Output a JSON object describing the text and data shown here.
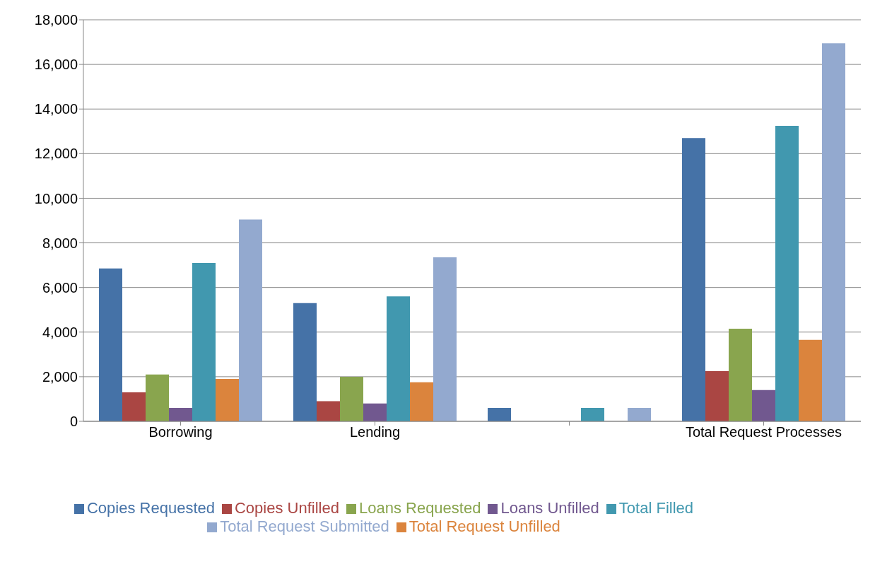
{
  "chart_data": {
    "type": "bar",
    "categories": [
      "Borrowing",
      "Lending",
      null,
      "Total Request Processes"
    ],
    "series": [
      {
        "name": "Copies Requested",
        "color": "#4572a7",
        "values": [
          6850,
          5300,
          600,
          12700
        ]
      },
      {
        "name": "Copies Unfilled",
        "color": "#aa4643",
        "values": [
          1300,
          900,
          0,
          2250
        ]
      },
      {
        "name": "Loans Requested",
        "color": "#89a54e",
        "values": [
          2100,
          2000,
          0,
          4150
        ]
      },
      {
        "name": "Loans Unfilled",
        "color": "#71588f",
        "values": [
          600,
          800,
          0,
          1400
        ]
      },
      {
        "name": "Total Filled",
        "color": "#4198af",
        "values": [
          7100,
          5600,
          600,
          13250
        ]
      },
      {
        "name": "Total Request Unfilled",
        "color": "#db843d",
        "values": [
          1900,
          1750,
          0,
          3650
        ]
      },
      {
        "name": "Total Request Submitted",
        "color": "#93a9cf",
        "values": [
          9050,
          7350,
          600,
          16950
        ]
      }
    ],
    "ylim": [
      0,
      18000
    ],
    "yticks": [
      {
        "value": 0,
        "label": "0"
      },
      {
        "value": 2000,
        "label": "2,000"
      },
      {
        "value": 4000,
        "label": "4,000"
      },
      {
        "value": 6000,
        "label": "6,000"
      },
      {
        "value": 8000,
        "label": "8,000"
      },
      {
        "value": 10000,
        "label": "10,000"
      },
      {
        "value": 12000,
        "label": "12,000"
      },
      {
        "value": 14000,
        "label": "14,000"
      },
      {
        "value": 16000,
        "label": "16,000"
      },
      {
        "value": 18000,
        "label": "18,000"
      }
    ],
    "grid": "y",
    "legend": "bottom"
  }
}
